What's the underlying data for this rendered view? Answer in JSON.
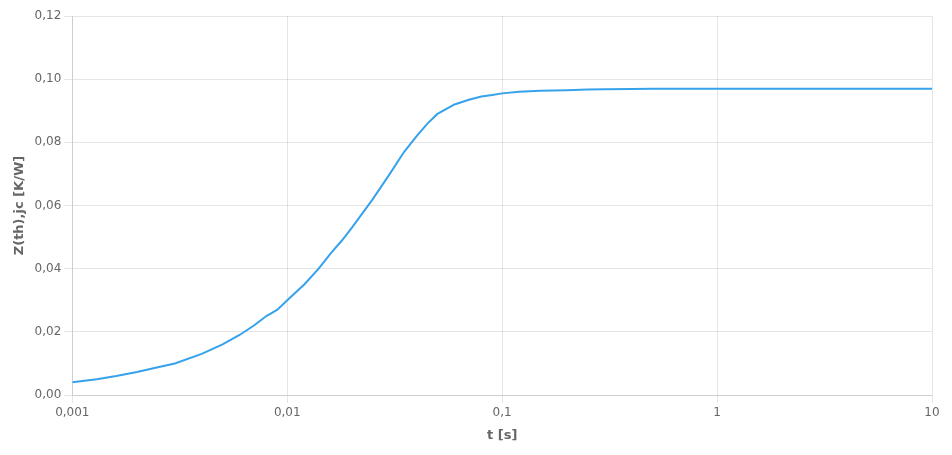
{
  "chart_data": {
    "type": "line",
    "xlabel": "t [s]",
    "ylabel": "Z(th),jc [K/W]",
    "log": "x",
    "grid": true,
    "xlim": [
      0.001,
      10
    ],
    "ylim": [
      0.0,
      0.12
    ],
    "xticks": [
      {
        "value": 0.001,
        "label": "0,001"
      },
      {
        "value": 0.01,
        "label": "0,01"
      },
      {
        "value": 0.1,
        "label": "0,1"
      },
      1,
      10
    ],
    "yticks": [
      {
        "value": 0.0,
        "label": "0,00"
      },
      {
        "value": 0.02,
        "label": "0,02"
      },
      {
        "value": 0.04,
        "label": "0,04"
      },
      {
        "value": 0.06,
        "label": "0,06"
      },
      {
        "value": 0.08,
        "label": "0,08"
      },
      {
        "value": 0.1,
        "label": "0,10"
      },
      {
        "value": 0.12,
        "label": "0,12"
      }
    ],
    "x": [
      0.001,
      0.0013,
      0.0016,
      0.002,
      0.0025,
      0.003,
      0.004,
      0.005,
      0.006,
      0.007,
      0.008,
      0.009,
      0.01,
      0.012,
      0.014,
      0.016,
      0.018,
      0.02,
      0.025,
      0.03,
      0.035,
      0.04,
      0.045,
      0.05,
      0.06,
      0.07,
      0.08,
      0.09,
      0.1,
      0.12,
      0.15,
      0.2,
      0.25,
      0.3,
      0.4,
      0.5,
      0.7,
      1.0,
      2.0,
      5.0,
      10.0
    ],
    "values": [
      0.004,
      0.005,
      0.006,
      0.0073,
      0.0088,
      0.01,
      0.013,
      0.016,
      0.019,
      0.022,
      0.025,
      0.027,
      0.03,
      0.035,
      0.04,
      0.045,
      0.049,
      0.053,
      0.062,
      0.07,
      0.077,
      0.082,
      0.086,
      0.089,
      0.092,
      0.0935,
      0.0945,
      0.095,
      0.0955,
      0.096,
      0.0963,
      0.0965,
      0.0967,
      0.0968,
      0.0969,
      0.097,
      0.097,
      0.097,
      0.097,
      0.097,
      0.097
    ]
  }
}
